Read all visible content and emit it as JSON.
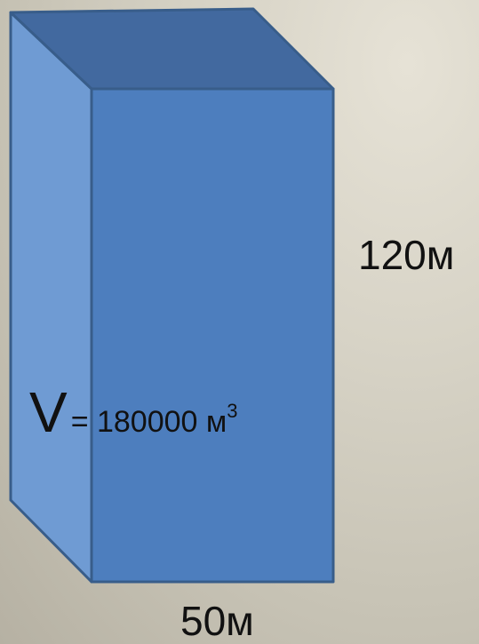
{
  "figure": {
    "volume_symbol": "V",
    "volume_value": "= 180000 м",
    "volume_exponent": "3",
    "height_label": "120м",
    "width_label": "50м"
  },
  "colors": {
    "front_face": "#4d7ebe",
    "top_face": "#42699f",
    "side_face": "#6f9bd3",
    "edge": "#385d8a"
  }
}
